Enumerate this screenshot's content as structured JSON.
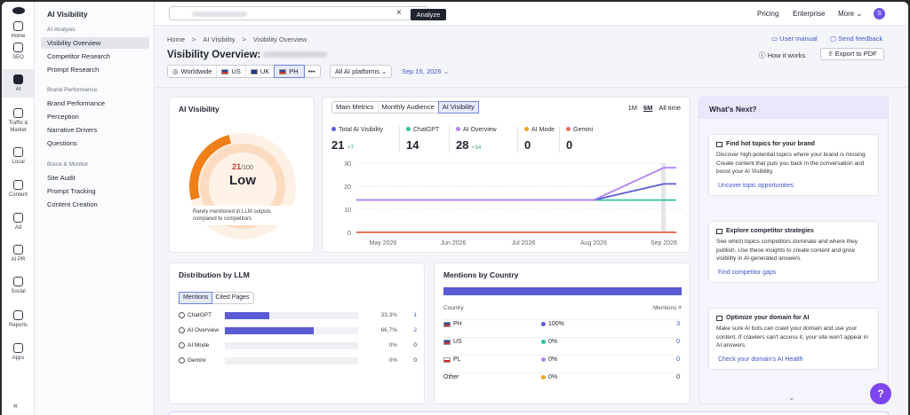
{
  "rail": {
    "items": [
      {
        "label": "Home",
        "icon": "home-icon"
      },
      {
        "label": "SEO",
        "icon": "seo-icon"
      },
      {
        "label": "AI",
        "icon": "ai-icon"
      },
      {
        "label": "Traffic &",
        "label2": "Market",
        "icon": "traffic-icon"
      },
      {
        "label": "Local",
        "icon": "local-pin-icon"
      },
      {
        "label": "Content",
        "icon": "content-icon"
      },
      {
        "label": "Ad",
        "icon": "ad-icon"
      },
      {
        "label": "AI PR",
        "icon": "ai-pr-icon"
      },
      {
        "label": "Social",
        "icon": "social-icon"
      },
      {
        "label": "Reports",
        "icon": "reports-icon"
      },
      {
        "label": "Apps",
        "icon": "apps-icon"
      }
    ],
    "collapse": "«"
  },
  "nav": {
    "title": "AI Visibility",
    "sec1": "AI Analysis",
    "analysis": [
      "Visibility Overview",
      "Competitor Research",
      "Prompt Research"
    ],
    "sec2": "Brand Performance",
    "brand": [
      "Brand Performance",
      "Perception",
      "Narrative Drivers",
      "Questions"
    ],
    "sec3": "Boost & Monitor",
    "boost": [
      "Site Audit",
      "Prompt Tracking",
      "Content Creation"
    ]
  },
  "top": {
    "clear": "×",
    "analyze": "Analyze",
    "pricing": "Pricing",
    "enterprise": "Enterprise",
    "more": "More ⌄",
    "avatar": "S"
  },
  "crumbs": [
    "Home",
    ">",
    "AI Visibility",
    ">",
    "Visibility Overview"
  ],
  "page_title": "Visibility Overview:",
  "links": {
    "manual": "User manual",
    "feedback": "Send feedback",
    "howit": "How it works",
    "export": "Export to PDF"
  },
  "regions": [
    "Worldwide",
    "US",
    "UK",
    "PH",
    "•••"
  ],
  "platforms": "All AI platforms ⌄",
  "date": "Sep 15, 2026 ⌄",
  "visibility": {
    "title": "AI Visibility",
    "score": "21",
    "max": "/100",
    "level": "Low",
    "note": "Rarely mentioned in LLM outputs compared to competitors"
  },
  "metric_tabs": [
    "Main Metrics",
    "Monthly Audience",
    "AI Visibility"
  ],
  "ranges": [
    "1M",
    "6M",
    "All time"
  ],
  "stats": [
    {
      "label": "Total AI Visibility",
      "value": "21",
      "delta": "+7",
      "color": "#5b5bd6"
    },
    {
      "label": "ChatGPT",
      "value": "14",
      "delta": "",
      "color": "#2ec4a0"
    },
    {
      "label": "AI Overview",
      "value": "28",
      "delta": "+14",
      "color": "#b383f5"
    },
    {
      "label": "AI Mode",
      "value": "0",
      "delta": "",
      "color": "#f2a516"
    },
    {
      "label": "Gemini",
      "value": "0",
      "delta": "",
      "color": "#ea6a5a"
    }
  ],
  "chart_data": {
    "type": "line",
    "x": [
      "May 2026",
      "Jun 2026",
      "Jul 2026",
      "Aug 2026",
      "Sep 2026"
    ],
    "yticks": [
      "30",
      "20",
      "10",
      "0"
    ],
    "ylim": [
      0,
      30
    ],
    "series": [
      {
        "name": "Total AI Visibility",
        "color": "#5b5bd6",
        "values": [
          14,
          14,
          14,
          14,
          21
        ]
      },
      {
        "name": "ChatGPT",
        "color": "#2ec4a0",
        "values": [
          14,
          14,
          14,
          14,
          14
        ]
      },
      {
        "name": "AI Overview",
        "color": "#b383f5",
        "values": [
          14,
          14,
          14,
          14,
          28
        ]
      },
      {
        "name": "AI Mode",
        "color": "#f2a516",
        "values": [
          0,
          0,
          0,
          0,
          0
        ]
      },
      {
        "name": "Gemini",
        "color": "#ea6a5a",
        "values": [
          0,
          0,
          0,
          0,
          0
        ]
      }
    ]
  },
  "llm": {
    "title": "Distribution by LLM",
    "tabs": [
      "Mentions",
      "Cited Pages"
    ],
    "rows": [
      {
        "name": "ChatGPT",
        "share": 33.3,
        "pct": "33,3%",
        "count": "1",
        "link": true
      },
      {
        "name": "AI Overview",
        "share": 66.7,
        "pct": "66,7%",
        "count": "2",
        "link": true
      },
      {
        "name": "AI Mode",
        "share": 0,
        "pct": "0%",
        "count": "0",
        "link": false
      },
      {
        "name": "Gemini",
        "share": 0,
        "pct": "0%",
        "count": "0",
        "link": false
      }
    ]
  },
  "country": {
    "title": "Mentions by Country",
    "col1": "Country",
    "col2": "Mentions",
    "rows": [
      {
        "name": "PH",
        "pct": "100%",
        "count": "3",
        "color": "#5b5bd6",
        "link": true
      },
      {
        "name": "US",
        "pct": "0%",
        "count": "0",
        "color": "#2ec4a0",
        "link": true
      },
      {
        "name": "PL",
        "pct": "0%",
        "count": "0",
        "color": "#b383f5",
        "link": true
      },
      {
        "name": "Other",
        "pct": "0%",
        "count": "0",
        "color": "#f2a516",
        "link": false
      }
    ]
  },
  "next": {
    "title": "What's Next?",
    "tips": [
      {
        "title": "Find hot topics for your brand",
        "body": "Discover high-potential topics where your brand is missing. Create content that puts you back in the conversation and boost your AI Visibility.",
        "link": "Uncover topic opportunities"
      },
      {
        "title": "Explore competitor strategies",
        "body": "See which topics competitors dominate and where they publish. Use these insights to create content and grow visibility in AI-generated answers.",
        "link": "Find competitor gaps"
      },
      {
        "title": "Optimize your domain for AI",
        "body": "Make sure AI bots can crawl your domain and use your content. If crawlers can't access it, your site won't appear in AI answers.",
        "link": "Check your domain's AI Health"
      }
    ],
    "more": "⌄"
  },
  "help": "?"
}
